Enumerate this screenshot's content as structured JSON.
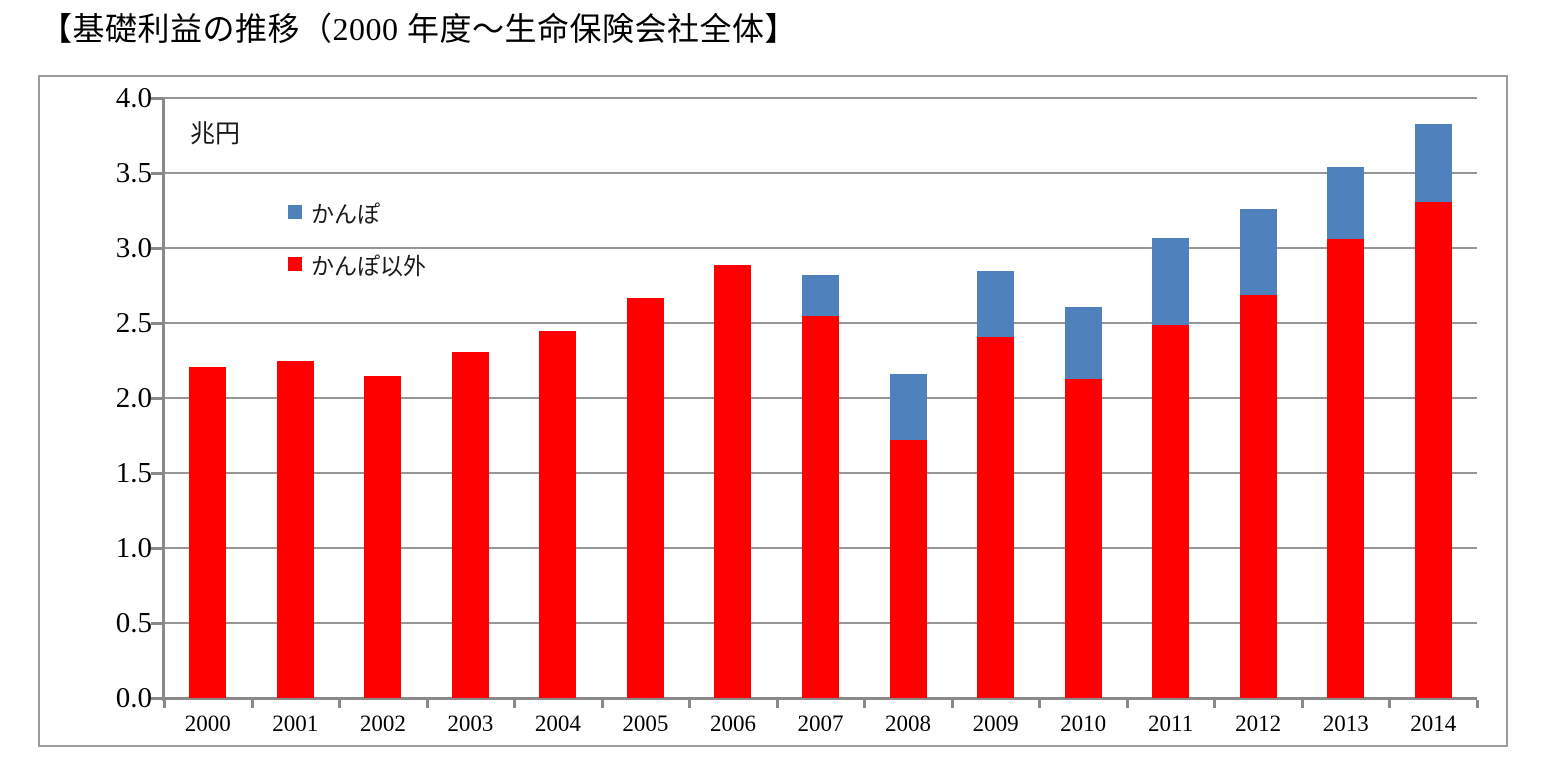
{
  "title": "【基礎利益の推移（2000 年度～生命保険会社全体】",
  "chart_data": {
    "type": "bar",
    "stacked": true,
    "title": "【基礎利益の推移（2000 年度～生命保険会社全体】",
    "unit_label": "兆円",
    "xlabel": "",
    "ylabel": "兆円",
    "categories": [
      "2000",
      "2001",
      "2002",
      "2003",
      "2004",
      "2005",
      "2006",
      "2007",
      "2008",
      "2009",
      "2010",
      "2011",
      "2012",
      "2013",
      "2014"
    ],
    "series": [
      {
        "name": "かんぽ以外",
        "color": "#ff0000",
        "values": [
          2.21,
          2.25,
          2.15,
          2.31,
          2.45,
          2.67,
          2.89,
          2.55,
          1.72,
          2.41,
          2.13,
          2.49,
          2.69,
          3.06,
          3.31
        ]
      },
      {
        "name": "かんぽ",
        "color": "#4f81bd",
        "values": [
          0,
          0,
          0,
          0,
          0,
          0,
          0,
          0.27,
          0.44,
          0.44,
          0.48,
          0.58,
          0.57,
          0.48,
          0.52
        ]
      }
    ],
    "totals": [
      2.21,
      2.25,
      2.15,
      2.31,
      2.45,
      2.67,
      2.89,
      2.82,
      2.16,
      2.85,
      2.61,
      3.07,
      3.26,
      3.54,
      3.83
    ],
    "ylim": [
      0.0,
      4.0
    ],
    "ytick_step": 0.5,
    "ytick_labels": [
      "4.0",
      "3.5",
      "3.0",
      "2.5",
      "2.0",
      "1.5",
      "1.0",
      "0.5",
      "0.0"
    ],
    "grid": true,
    "legend_position": "inside-top-left",
    "legend_order": [
      "かんぽ",
      "かんぽ以外"
    ]
  },
  "legend": {
    "items": [
      {
        "label": "かんぽ",
        "color": "#4f81bd"
      },
      {
        "label": "かんぽ以外",
        "color": "#ff0000"
      }
    ]
  },
  "colors": {
    "bar_red": "#ff0000",
    "bar_blue": "#4f81bd",
    "gridline": "#969696",
    "axis": "#8a8a8a",
    "frame_border": "#9c9c9c",
    "text": "#000000"
  }
}
